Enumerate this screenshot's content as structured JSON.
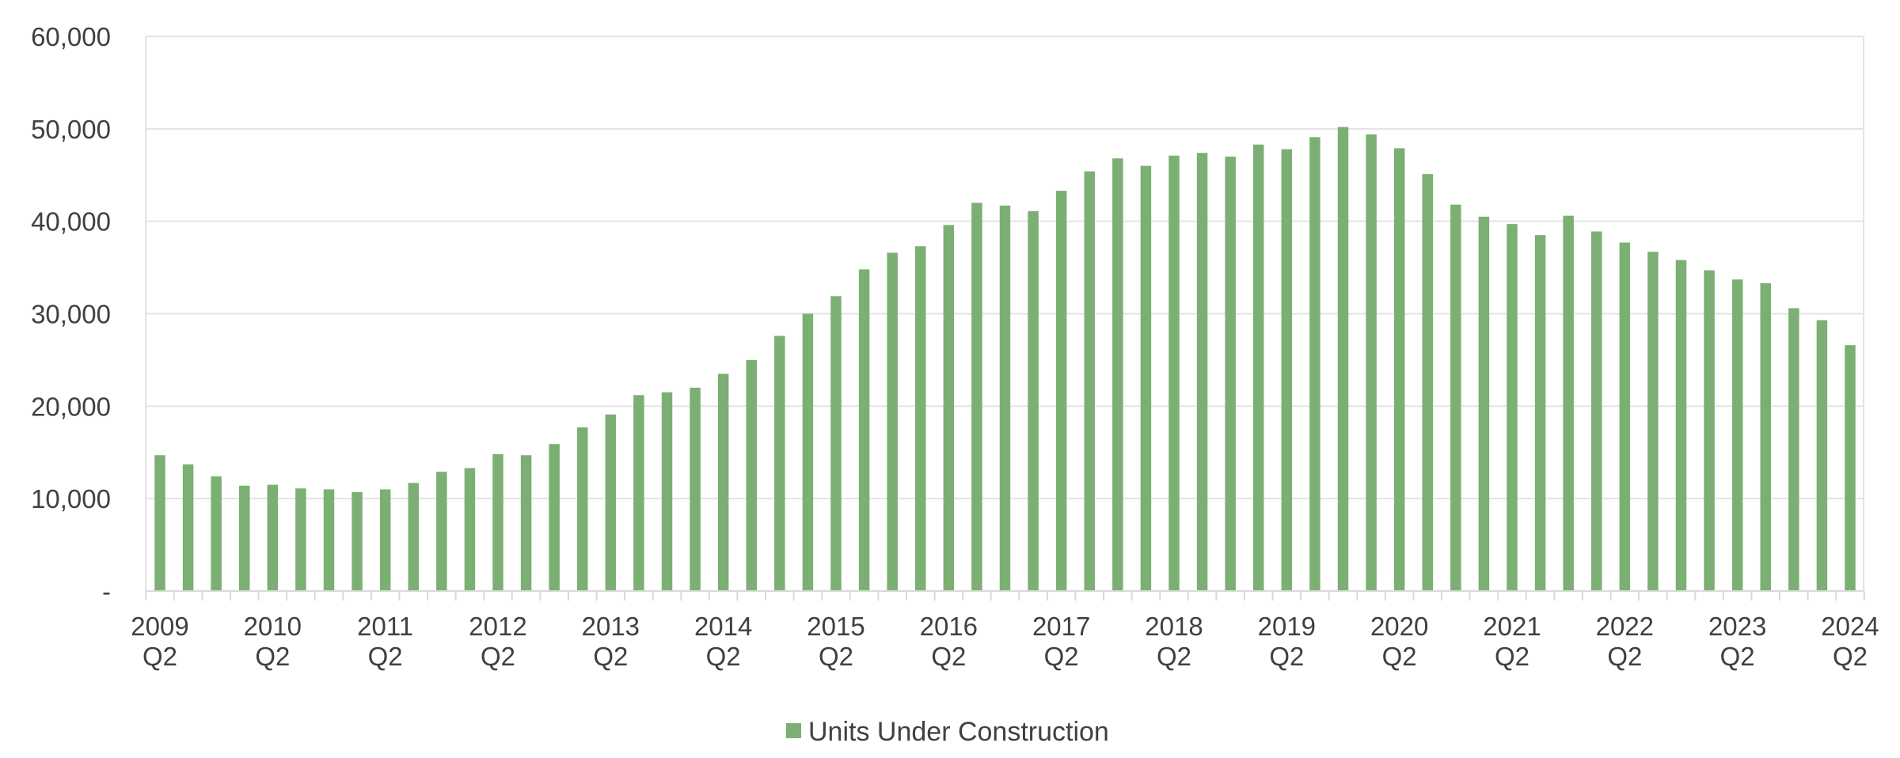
{
  "colors": {
    "bar": "#7caf73",
    "grid": "#e3e3e3",
    "axis": "#d9d9d9",
    "text": "#404040"
  },
  "chart_data": {
    "type": "bar",
    "title": "",
    "xlabel": "",
    "ylabel": "",
    "ylim": [
      0,
      60000
    ],
    "yticks": [
      {
        "value": 0,
        "label": "-"
      },
      {
        "value": 10000,
        "label": "10,000"
      },
      {
        "value": 20000,
        "label": "20,000"
      },
      {
        "value": 30000,
        "label": "30,000"
      },
      {
        "value": 40000,
        "label": "40,000"
      },
      {
        "value": 50000,
        "label": "50,000"
      },
      {
        "value": 60000,
        "label": "60,000"
      }
    ],
    "grid": true,
    "legend": {
      "position": "bottom-center"
    },
    "categories": [
      "2009 Q2",
      "2009 Q3",
      "2009 Q4",
      "2010 Q1",
      "2010 Q2",
      "2010 Q3",
      "2010 Q4",
      "2011 Q1",
      "2011 Q2",
      "2011 Q3",
      "2011 Q4",
      "2012 Q1",
      "2012 Q2",
      "2012 Q3",
      "2012 Q4",
      "2013 Q1",
      "2013 Q2",
      "2013 Q3",
      "2013 Q4",
      "2014 Q1",
      "2014 Q2",
      "2014 Q3",
      "2014 Q4",
      "2015 Q1",
      "2015 Q2",
      "2015 Q3",
      "2015 Q4",
      "2016 Q1",
      "2016 Q2",
      "2016 Q3",
      "2016 Q4",
      "2017 Q1",
      "2017 Q2",
      "2017 Q3",
      "2017 Q4",
      "2018 Q1",
      "2018 Q2",
      "2018 Q3",
      "2018 Q4",
      "2019 Q1",
      "2019 Q2",
      "2019 Q3",
      "2019 Q4",
      "2020 Q1",
      "2020 Q2",
      "2020 Q3",
      "2020 Q4",
      "2021 Q1",
      "2021 Q2",
      "2021 Q3",
      "2021 Q4",
      "2022 Q1",
      "2022 Q2",
      "2022 Q3",
      "2022 Q4",
      "2023 Q1",
      "2023 Q2",
      "2023 Q3",
      "2023 Q4",
      "2024 Q1",
      "2024 Q2"
    ],
    "tick_labels": [
      {
        "index": 0,
        "year": "2009",
        "quarter": "Q2"
      },
      {
        "index": 4,
        "year": "2010",
        "quarter": "Q2"
      },
      {
        "index": 8,
        "year": "2011",
        "quarter": "Q2"
      },
      {
        "index": 12,
        "year": "2012",
        "quarter": "Q2"
      },
      {
        "index": 16,
        "year": "2013",
        "quarter": "Q2"
      },
      {
        "index": 20,
        "year": "2014",
        "quarter": "Q2"
      },
      {
        "index": 24,
        "year": "2015",
        "quarter": "Q2"
      },
      {
        "index": 28,
        "year": "2016",
        "quarter": "Q2"
      },
      {
        "index": 32,
        "year": "2017",
        "quarter": "Q2"
      },
      {
        "index": 36,
        "year": "2018",
        "quarter": "Q2"
      },
      {
        "index": 40,
        "year": "2019",
        "quarter": "Q2"
      },
      {
        "index": 44,
        "year": "2020",
        "quarter": "Q2"
      },
      {
        "index": 48,
        "year": "2021",
        "quarter": "Q2"
      },
      {
        "index": 52,
        "year": "2022",
        "quarter": "Q2"
      },
      {
        "index": 56,
        "year": "2023",
        "quarter": "Q2"
      },
      {
        "index": 60,
        "year": "2024",
        "quarter": "Q2"
      }
    ],
    "series": [
      {
        "name": "Units Under Construction",
        "values": [
          14700,
          13700,
          12400,
          11400,
          11500,
          11100,
          11000,
          10700,
          11000,
          11700,
          12900,
          13300,
          14800,
          14700,
          15900,
          17700,
          19100,
          21200,
          21500,
          22000,
          23500,
          25000,
          27600,
          30000,
          31900,
          34800,
          36600,
          37300,
          39600,
          42000,
          41700,
          41100,
          43300,
          45400,
          46800,
          46000,
          47100,
          47400,
          47000,
          48300,
          47800,
          49100,
          50200,
          49400,
          47900,
          45100,
          41800,
          40500,
          39700,
          38500,
          40600,
          38900,
          37700,
          36700,
          35800,
          34700,
          33700,
          33300,
          30600,
          29300,
          26600
        ]
      }
    ]
  }
}
